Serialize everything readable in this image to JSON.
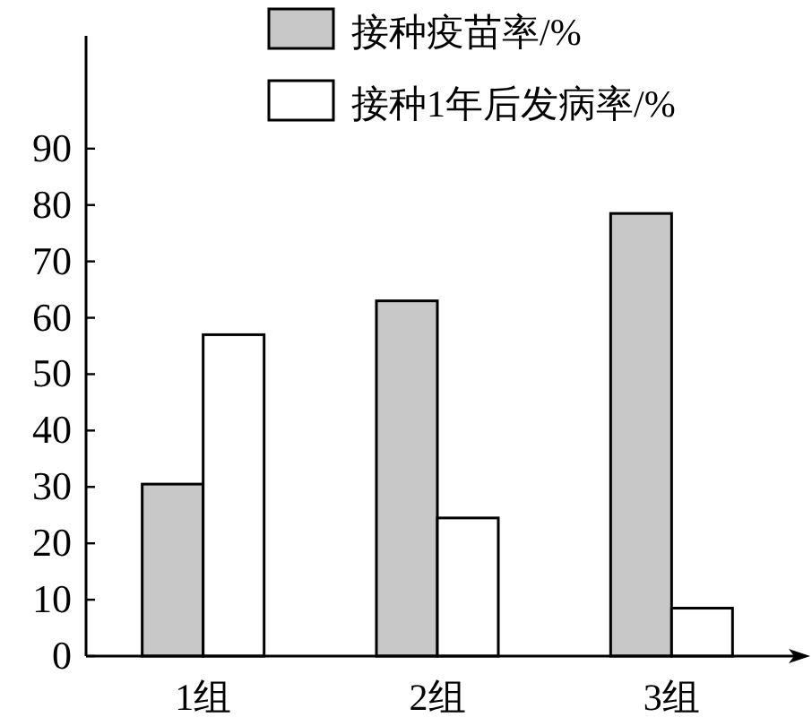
{
  "chart_data": {
    "type": "bar",
    "categories": [
      "1组",
      "2组",
      "3组"
    ],
    "series": [
      {
        "name": "接种疫苗率/%",
        "color": "#c8c8c8",
        "values": [
          30.5,
          63,
          78.5
        ]
      },
      {
        "name": "接种1年后发病率/%",
        "color": "#ffffff",
        "values": [
          57,
          24.5,
          8.5
        ]
      }
    ],
    "ylim": [
      0,
      110
    ],
    "yticks": [
      0,
      10,
      20,
      30,
      40,
      50,
      60,
      70,
      80,
      90
    ],
    "grid": false,
    "legend": "top"
  }
}
